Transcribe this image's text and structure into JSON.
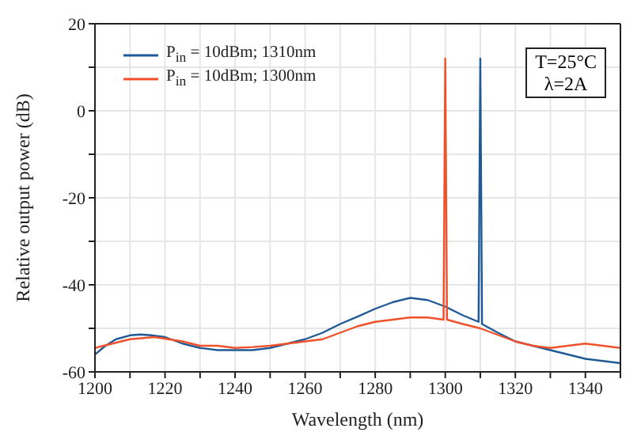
{
  "chart_data": {
    "type": "line",
    "xlabel": "Wavelength (nm)",
    "ylabel": "Relative output power (dB)",
    "xlim": [
      1200,
      1350
    ],
    "ylim": [
      -60,
      20
    ],
    "xticks": [
      1200,
      {
        "value": 1210,
        "label": null
      },
      1220,
      {
        "value": 1230,
        "label": null
      },
      1240,
      {
        "value": 1250,
        "label": null
      },
      1260,
      {
        "value": 1270,
        "label": null
      },
      1280,
      {
        "value": 1290,
        "label": null
      },
      1300,
      {
        "value": 1310,
        "label": null
      },
      1320,
      {
        "value": 1330,
        "label": null
      },
      1340,
      {
        "value": 1350,
        "label": null
      }
    ],
    "yticks": [
      -60,
      {
        "value": -50,
        "label": null
      },
      -40,
      {
        "value": -30,
        "label": null
      },
      -20,
      {
        "value": -10,
        "label": null
      },
      0,
      {
        "value": 10,
        "label": null
      },
      20
    ],
    "grid": true,
    "legend": "top left",
    "marker": "none",
    "line_style": "solid",
    "annotations": [
      "T=25°C",
      "λ=2A"
    ],
    "series": [
      {
        "name": "P$_{in}$ = 10dBm; 1310nm",
        "color": "#1f5a96",
        "x": [
          1200,
          1203,
          1206,
          1210,
          1213,
          1216,
          1220,
          1225,
          1230,
          1235,
          1240,
          1245,
          1250,
          1255,
          1260,
          1265,
          1270,
          1275,
          1280,
          1285,
          1290,
          1295,
          1300,
          1305,
          1309.5,
          1310,
          1310.5,
          1315,
          1320,
          1325,
          1330,
          1335,
          1340,
          1345,
          1350
        ],
        "values": [
          -56,
          -54,
          -52.5,
          -51.6,
          -51.4,
          -51.6,
          -52,
          -53.5,
          -54.5,
          -55,
          -55,
          -55,
          -54.5,
          -53.5,
          -52.5,
          -51,
          -49,
          -47.3,
          -45.5,
          -44,
          -43,
          -43.5,
          -45,
          -47,
          -48.5,
          12,
          -49,
          -51,
          -53,
          -54,
          -55,
          -56,
          -57,
          -57.5,
          -58
        ]
      },
      {
        "name": "P$_{in}$ = 10dBm; 1300nm",
        "color": "#f0502a",
        "x": [
          1200,
          1205,
          1210,
          1217,
          1225,
          1230,
          1235,
          1240,
          1245,
          1250,
          1255,
          1260,
          1265,
          1270,
          1275,
          1280,
          1285,
          1290,
          1295,
          1299.5,
          1300,
          1300.5,
          1305,
          1310,
          1315,
          1320,
          1325,
          1330,
          1335,
          1340,
          1345,
          1350
        ],
        "values": [
          -54.5,
          -53.5,
          -52.5,
          -52,
          -53,
          -54,
          -54,
          -54.5,
          -54.3,
          -54,
          -53.5,
          -53,
          -52.5,
          -51,
          -49.5,
          -48.5,
          -48,
          -47.5,
          -47.5,
          -48,
          12,
          -48,
          -49,
          -50,
          -51.5,
          -53,
          -54,
          -54.5,
          -54,
          -53.5,
          -54,
          -54.5
        ]
      }
    ]
  }
}
